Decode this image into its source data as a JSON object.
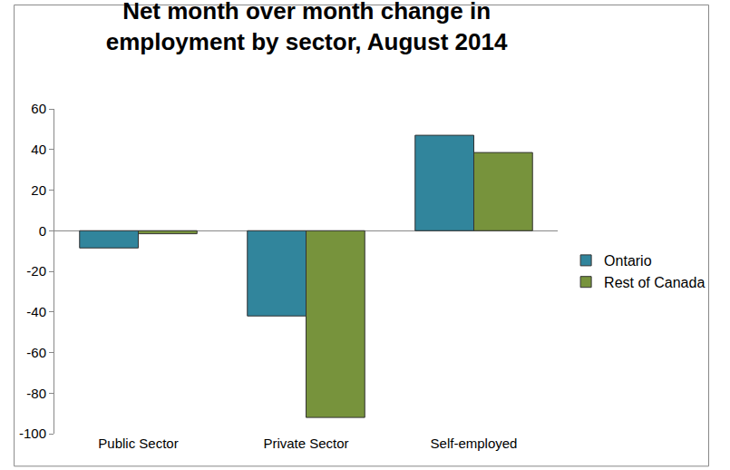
{
  "chart_data": {
    "type": "bar",
    "title": "Net month over month change in employment by sector, August 2014",
    "categories": [
      "Public Sector",
      "Private Sector",
      "Self-employed"
    ],
    "series": [
      {
        "name": "Ontario",
        "color": "#31859c",
        "values": [
          -8.5,
          -42,
          47
        ]
      },
      {
        "name": "Rest of Canada",
        "color": "#77933c",
        "values": [
          -1.5,
          -92,
          38.5
        ]
      }
    ],
    "ylim": [
      -100,
      60
    ],
    "yticks": [
      -100,
      -80,
      -60,
      -40,
      -20,
      0,
      20,
      40,
      60
    ],
    "grid": false,
    "legend": "right"
  }
}
